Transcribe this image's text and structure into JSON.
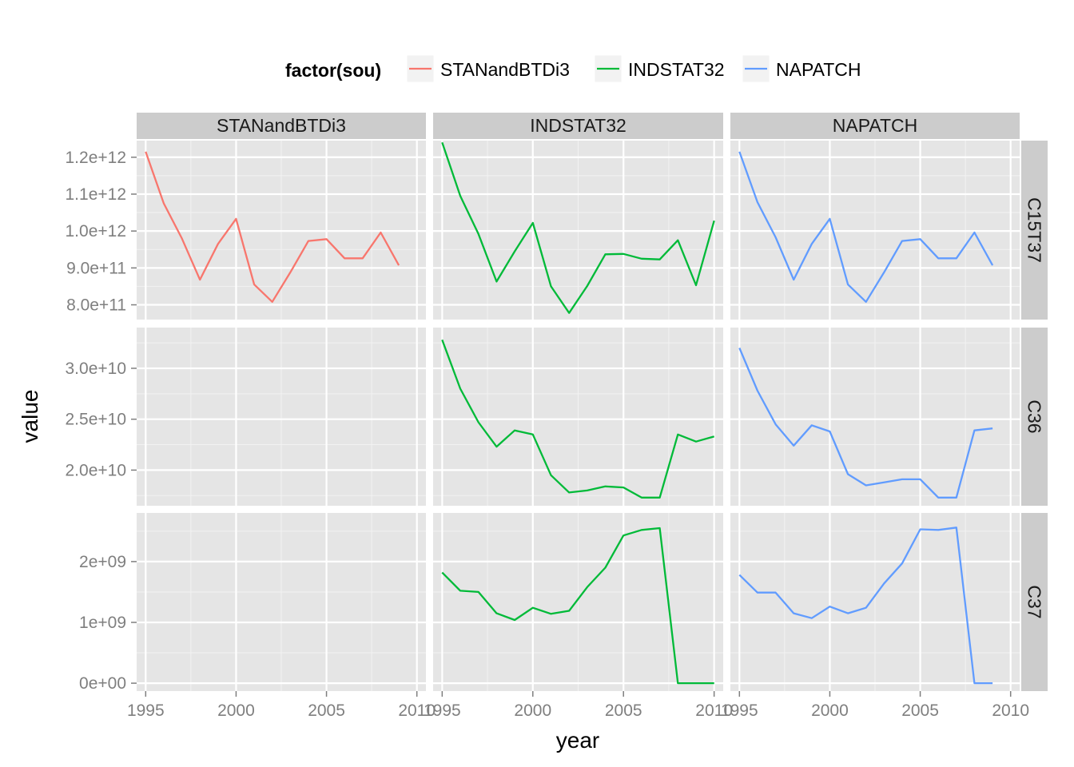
{
  "chart_data": {
    "type": "line",
    "facet_rows": [
      "C15T37",
      "C36",
      "C37"
    ],
    "facet_cols": [
      "STANandBTDi3",
      "INDSTAT32",
      "NAPATCH"
    ],
    "xlabel": "year",
    "ylabel": "value",
    "xlim": [
      1994.5,
      2010.5
    ],
    "x_ticks": [
      1995,
      2000,
      2005,
      2010
    ],
    "x_tick_labels": [
      "1995",
      "2000",
      "2005",
      "2010"
    ],
    "grid": true,
    "legend": {
      "title": "factor(sou)",
      "position": "top",
      "entries": [
        "STANandBTDi3",
        "INDSTAT32",
        "NAPATCH"
      ]
    },
    "colors": {
      "STANandBTDi3": "#F8766D",
      "INDSTAT32": "#00BA38",
      "NAPATCH": "#619CFF",
      "panel_bg": "#E5E5E5",
      "grid": "#FFFFFF",
      "strip_bg": "#CCCCCC"
    },
    "rows": [
      {
        "name": "C15T37",
        "ylim": [
          760000000000.0,
          1245000000000.0
        ],
        "y_ticks": [
          800000000000.0,
          900000000000.0,
          1000000000000.0,
          1100000000000.0,
          1200000000000.0
        ],
        "y_tick_labels": [
          "8.0e+11",
          "9.0e+11",
          "1.0e+12",
          "1.1e+12",
          "1.2e+12"
        ]
      },
      {
        "name": "C36",
        "ylim": [
          16500000000.0,
          34000000000.0
        ],
        "y_ticks": [
          20000000000.0,
          25000000000.0,
          30000000000.0
        ],
        "y_tick_labels": [
          "2.0e+10",
          "2.5e+10",
          "3.0e+10"
        ]
      },
      {
        "name": "C37",
        "ylim": [
          -130000000.0,
          2800000000.0
        ],
        "y_ticks": [
          0,
          1000000000.0,
          2000000000.0
        ],
        "y_tick_labels": [
          "0e+00",
          "1e+09",
          "2e+09"
        ]
      }
    ],
    "series": [
      {
        "name": "STANandBTDi3",
        "row": "C15T37",
        "x": [
          1995,
          1996,
          1997,
          1998,
          1999,
          2000,
          2001,
          2002,
          2003,
          2004,
          2005,
          2006,
          2007,
          2008,
          2009
        ],
        "y": [
          1215000000000.0,
          1075000000000.0,
          980000000000.0,
          868000000000.0,
          965000000000.0,
          1033000000000.0,
          855000000000.0,
          808000000000.0,
          888000000000.0,
          973000000000.0,
          978000000000.0,
          926000000000.0,
          926000000000.0,
          996000000000.0,
          907000000000.0
        ]
      },
      {
        "name": "INDSTAT32",
        "row": "C15T37",
        "x": [
          1995,
          1996,
          1997,
          1998,
          1999,
          2000,
          2001,
          2002,
          2003,
          2004,
          2005,
          2006,
          2007,
          2008,
          2009,
          2010
        ],
        "y": [
          1240000000000.0,
          1095000000000.0,
          992000000000.0,
          863000000000.0,
          945000000000.0,
          1022000000000.0,
          850000000000.0,
          778000000000.0,
          851000000000.0,
          937000000000.0,
          938000000000.0,
          925000000000.0,
          923000000000.0,
          975000000000.0,
          853000000000.0,
          1028000000000.0
        ]
      },
      {
        "name": "NAPATCH",
        "row": "C15T37",
        "x": [
          1995,
          1996,
          1997,
          1998,
          1999,
          2000,
          2001,
          2002,
          2003,
          2004,
          2005,
          2006,
          2007,
          2008,
          2009
        ],
        "y": [
          1215000000000.0,
          1078000000000.0,
          983000000000.0,
          868000000000.0,
          965000000000.0,
          1033000000000.0,
          855000000000.0,
          808000000000.0,
          888000000000.0,
          973000000000.0,
          978000000000.0,
          926000000000.0,
          926000000000.0,
          996000000000.0,
          907000000000.0
        ]
      },
      {
        "name": "INDSTAT32",
        "row": "C36",
        "x": [
          1995,
          1996,
          1997,
          1998,
          1999,
          2000,
          2001,
          2002,
          2003,
          2004,
          2005,
          2006,
          2007,
          2008,
          2009,
          2010
        ],
        "y": [
          32800000000.0,
          28000000000.0,
          24700000000.0,
          22300000000.0,
          23900000000.0,
          23500000000.0,
          19500000000.0,
          17800000000.0,
          18000000000.0,
          18400000000.0,
          18300000000.0,
          17300000000.0,
          17300000000.0,
          23500000000.0,
          22800000000.0,
          23300000000.0
        ]
      },
      {
        "name": "NAPATCH",
        "row": "C36",
        "x": [
          1995,
          1996,
          1997,
          1998,
          1999,
          2000,
          2001,
          2002,
          2003,
          2004,
          2005,
          2006,
          2007,
          2008,
          2009
        ],
        "y": [
          32000000000.0,
          27800000000.0,
          24500000000.0,
          22400000000.0,
          24400000000.0,
          23800000000.0,
          19600000000.0,
          18500000000.0,
          18800000000.0,
          19100000000.0,
          19100000000.0,
          17300000000.0,
          17300000000.0,
          23900000000.0,
          24100000000.0
        ]
      },
      {
        "name": "INDSTAT32",
        "row": "C37",
        "x": [
          1995,
          1996,
          1997,
          1998,
          1999,
          2000,
          2001,
          2002,
          2003,
          2004,
          2005,
          2006,
          2007,
          2008,
          2009,
          2010
        ],
        "y": [
          1820000000.0,
          1520000000.0,
          1500000000.0,
          1150000000.0,
          1040000000.0,
          1240000000.0,
          1140000000.0,
          1190000000.0,
          1580000000.0,
          1900000000.0,
          2430000000.0,
          2520000000.0,
          2550000000.0,
          0,
          0,
          0
        ]
      },
      {
        "name": "NAPATCH",
        "row": "C37",
        "x": [
          1995,
          1996,
          1997,
          1998,
          1999,
          2000,
          2001,
          2002,
          2003,
          2004,
          2005,
          2006,
          2007,
          2008,
          2009
        ],
        "y": [
          1780000000.0,
          1490000000.0,
          1490000000.0,
          1150000000.0,
          1070000000.0,
          1260000000.0,
          1150000000.0,
          1240000000.0,
          1640000000.0,
          1970000000.0,
          2530000000.0,
          2520000000.0,
          2560000000.0,
          0,
          0
        ]
      }
    ]
  }
}
